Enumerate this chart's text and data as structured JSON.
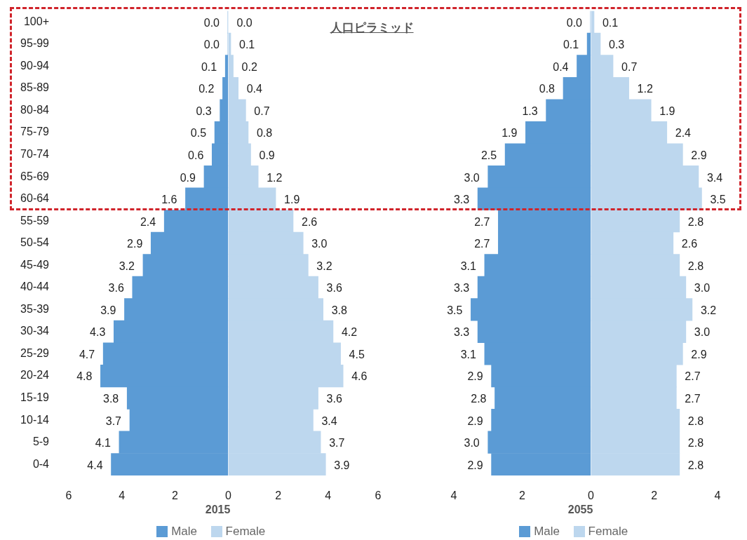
{
  "chart_data": [
    {
      "type": "bar",
      "orientation": "horizontal",
      "categories": [
        "100+",
        "95-99",
        "90-94",
        "85-89",
        "80-84",
        "75-79",
        "70-74",
        "65-69",
        "60-64",
        "55-59",
        "50-54",
        "45-49",
        "40-44",
        "35-39",
        "30-34",
        "25-29",
        "20-24",
        "15-19",
        "10-14",
        "5-9",
        "0-4"
      ],
      "series": [
        {
          "name": "Male",
          "color": "#5b9bd5",
          "values": [
            0.0,
            0.0,
            0.1,
            0.2,
            0.3,
            0.5,
            0.6,
            0.9,
            1.6,
            2.4,
            2.9,
            3.2,
            3.6,
            3.9,
            4.3,
            4.7,
            4.8,
            3.8,
            3.7,
            4.1,
            4.4
          ],
          "value_labels": [
            "0.0",
            "0.0",
            "0.1",
            "0.2",
            "0.3",
            "0.5",
            "0.6",
            "0.9",
            "1.6",
            "2.4",
            "2.9",
            "3.2",
            "3.6",
            "3.9",
            "4.3",
            "4.7",
            "4.8",
            "3.8",
            "3.7",
            "4.1",
            "4.4"
          ]
        }
      ],
      "xlim": [
        6,
        0
      ],
      "xticks": [
        6,
        4,
        2
      ],
      "grid": false,
      "legend": "bottom"
    },
    {
      "type": "bar",
      "orientation": "horizontal",
      "title": "人口ピラミッド",
      "xlabel": "2015",
      "tick_labels": "x",
      "categories": [
        null,
        null,
        null,
        null,
        null,
        null,
        null,
        null,
        null,
        null,
        null,
        null,
        null,
        null,
        null,
        null,
        null,
        null,
        null,
        null,
        null
      ],
      "series": [
        {
          "name": "Female",
          "color": "#bdd7ee",
          "values": [
            0.0,
            0.1,
            0.2,
            0.4,
            0.7,
            0.8,
            0.9,
            1.2,
            1.9,
            2.6,
            3.0,
            3.2,
            3.6,
            3.8,
            4.2,
            4.5,
            4.6,
            3.6,
            3.4,
            3.7,
            3.9
          ],
          "value_labels": [
            "0.0",
            "0.1",
            "0.2",
            "0.4",
            "0.7",
            "0.8",
            "0.9",
            "1.2",
            "1.9",
            "2.6",
            "3.0",
            "3.2",
            "3.6",
            "3.8",
            "4.2",
            "4.5",
            "4.6",
            "3.6",
            "3.4",
            "3.7",
            "3.9"
          ]
        }
      ],
      "xlim": [
        0,
        6
      ],
      "xticks": [
        0,
        2,
        4,
        6
      ],
      "grid": false,
      "legend": "bottom"
    },
    {
      "type": "bar",
      "orientation": "horizontal",
      "tick_labels": "x",
      "categories": [
        null,
        null,
        null,
        null,
        null,
        null,
        null,
        null,
        null,
        null,
        null,
        null,
        null,
        null,
        null,
        null,
        null,
        null,
        null,
        null,
        null
      ],
      "series": [
        {
          "name": "Male",
          "color": "#5b9bd5",
          "values": [
            0.0,
            0.1,
            0.4,
            0.8,
            1.3,
            1.9,
            2.5,
            3.0,
            3.3,
            2.7,
            2.7,
            3.1,
            3.3,
            3.5,
            3.3,
            3.1,
            2.9,
            2.8,
            2.9,
            3.0,
            2.9
          ],
          "value_labels": [
            "0.0",
            "0.1",
            "0.4",
            "0.8",
            "1.3",
            "1.9",
            "2.5",
            "3.0",
            "3.3",
            "2.7",
            "2.7",
            "3.1",
            "3.3",
            "3.5",
            "3.3",
            "3.1",
            "2.9",
            "2.8",
            "2.9",
            "3.0",
            "2.9"
          ]
        }
      ],
      "xlim": [
        4,
        0
      ],
      "xticks": [
        4,
        2
      ],
      "grid": false,
      "legend": "bottom"
    },
    {
      "type": "bar",
      "orientation": "horizontal",
      "xlabel": "2055",
      "tick_labels": "x",
      "categories": [
        null,
        null,
        null,
        null,
        null,
        null,
        null,
        null,
        null,
        null,
        null,
        null,
        null,
        null,
        null,
        null,
        null,
        null,
        null,
        null,
        null
      ],
      "series": [
        {
          "name": "Female",
          "color": "#bdd7ee",
          "values": [
            0.1,
            0.3,
            0.7,
            1.2,
            1.9,
            2.4,
            2.9,
            3.4,
            3.5,
            2.8,
            2.6,
            2.8,
            3.0,
            3.2,
            3.0,
            2.9,
            2.7,
            2.7,
            2.8,
            2.8,
            2.8
          ],
          "value_labels": [
            "0.1",
            "0.3",
            "0.7",
            "1.2",
            "1.9",
            "2.4",
            "2.9",
            "3.4",
            "3.5",
            "2.8",
            "2.6",
            "2.8",
            "3.0",
            "3.2",
            "3.0",
            "2.9",
            "2.7",
            "2.7",
            "2.8",
            "2.8",
            "2.8"
          ]
        }
      ],
      "xlim": [
        0,
        4
      ],
      "xticks": [
        0,
        2,
        4
      ],
      "grid": false,
      "legend": "bottom"
    }
  ]
}
